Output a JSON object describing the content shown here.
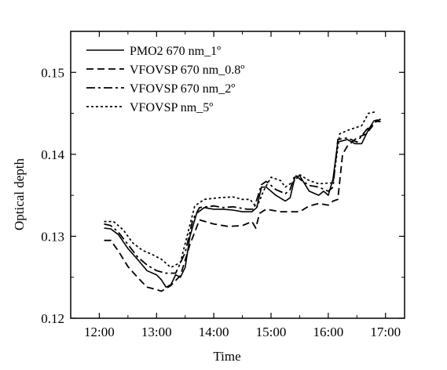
{
  "chart_data": {
    "type": "line",
    "xlabel": "Time",
    "ylabel": "Optical depth",
    "xlim": [
      "11:30",
      "17:20"
    ],
    "ylim": [
      0.12,
      0.155
    ],
    "x_ticks": [
      "12:00",
      "13:00",
      "14:00",
      "15:00",
      "16:00",
      "17:00"
    ],
    "y_ticks": [
      "0.12",
      "0.13",
      "0.14",
      "0.15"
    ],
    "grid": false,
    "legend_position": "top-left",
    "series": [
      {
        "name": "PMO2 670 nm_1º",
        "dash": "solid",
        "points": [
          [
            "12:05",
            0.131
          ],
          [
            "12:12",
            0.1309
          ],
          [
            "12:20",
            0.1302
          ],
          [
            "12:30",
            0.1285
          ],
          [
            "12:40",
            0.1272
          ],
          [
            "12:50",
            0.1258
          ],
          [
            "13:00",
            0.1253
          ],
          [
            "13:05",
            0.1247
          ],
          [
            "13:10",
            0.1238
          ],
          [
            "13:15",
            0.1241
          ],
          [
            "13:20",
            0.1253
          ],
          [
            "13:25",
            0.125
          ],
          [
            "13:30",
            0.1262
          ],
          [
            "13:35",
            0.13
          ],
          [
            "13:42",
            0.1328
          ],
          [
            "13:50",
            0.1335
          ],
          [
            "14:00",
            0.1333
          ],
          [
            "14:10",
            0.1333
          ],
          [
            "14:20",
            0.1332
          ],
          [
            "14:30",
            0.133
          ],
          [
            "14:40",
            0.133
          ],
          [
            "14:45",
            0.1335
          ],
          [
            "14:50",
            0.136
          ],
          [
            "14:55",
            0.136
          ],
          [
            "15:05",
            0.135
          ],
          [
            "15:15",
            0.1343
          ],
          [
            "15:20",
            0.1347
          ],
          [
            "15:25",
            0.1372
          ],
          [
            "15:30",
            0.1374
          ],
          [
            "15:40",
            0.1355
          ],
          [
            "15:50",
            0.135
          ],
          [
            "15:55",
            0.1355
          ],
          [
            "16:00",
            0.135
          ],
          [
            "16:05",
            0.137
          ],
          [
            "16:10",
            0.1415
          ],
          [
            "16:20",
            0.1418
          ],
          [
            "16:28",
            0.1413
          ],
          [
            "16:35",
            0.1413
          ],
          [
            "16:42",
            0.143
          ],
          [
            "16:48",
            0.1441
          ],
          [
            "16:52",
            0.1442
          ]
        ]
      },
      {
        "name": "VFOVSP 670 nm_0.8º",
        "dash": "dashed",
        "points": [
          [
            "12:05",
            0.1295
          ],
          [
            "12:12",
            0.1295
          ],
          [
            "12:20",
            0.1282
          ],
          [
            "12:30",
            0.1263
          ],
          [
            "12:40",
            0.125
          ],
          [
            "12:50",
            0.1238
          ],
          [
            "13:00",
            0.1235
          ],
          [
            "13:05",
            0.1233
          ],
          [
            "13:15",
            0.124
          ],
          [
            "13:25",
            0.1252
          ],
          [
            "13:35",
            0.129
          ],
          [
            "13:45",
            0.132
          ],
          [
            "14:00",
            0.1315
          ],
          [
            "14:15",
            0.1312
          ],
          [
            "14:30",
            0.1313
          ],
          [
            "14:40",
            0.1318
          ],
          [
            "14:44",
            0.131
          ],
          [
            "14:48",
            0.1328
          ],
          [
            "14:55",
            0.1333
          ],
          [
            "15:10",
            0.133
          ],
          [
            "15:30",
            0.133
          ],
          [
            "15:40",
            0.1337
          ],
          [
            "15:50",
            0.134
          ],
          [
            "16:00",
            0.1338
          ],
          [
            "16:05",
            0.1343
          ],
          [
            "16:10",
            0.1345
          ],
          [
            "16:15",
            0.14
          ],
          [
            "16:20",
            0.141
          ],
          [
            "16:30",
            0.142
          ],
          [
            "16:40",
            0.1425
          ],
          [
            "16:50",
            0.144
          ],
          [
            "16:55",
            0.1443
          ]
        ]
      },
      {
        "name": "VFOVSP 670 nm_2º",
        "dash": "dashdot",
        "points": [
          [
            "12:05",
            0.1315
          ],
          [
            "12:12",
            0.1313
          ],
          [
            "12:20",
            0.1305
          ],
          [
            "12:30",
            0.129
          ],
          [
            "12:40",
            0.1275
          ],
          [
            "12:50",
            0.1265
          ],
          [
            "13:00",
            0.1258
          ],
          [
            "13:10",
            0.1255
          ],
          [
            "13:20",
            0.1255
          ],
          [
            "13:30",
            0.128
          ],
          [
            "13:38",
            0.132
          ],
          [
            "13:45",
            0.1335
          ],
          [
            "14:00",
            0.1337
          ],
          [
            "14:10",
            0.1335
          ],
          [
            "14:20",
            0.1336
          ],
          [
            "14:35",
            0.1333
          ],
          [
            "14:42",
            0.1333
          ],
          [
            "14:50",
            0.1363
          ],
          [
            "14:55",
            0.1367
          ],
          [
            "15:05",
            0.1357
          ],
          [
            "15:15",
            0.1352
          ],
          [
            "15:20",
            0.1357
          ],
          [
            "15:25",
            0.1375
          ],
          [
            "15:32",
            0.1368
          ],
          [
            "15:40",
            0.1362
          ],
          [
            "15:50",
            0.136
          ],
          [
            "16:00",
            0.1355
          ],
          [
            "16:05",
            0.136
          ],
          [
            "16:10",
            0.1418
          ],
          [
            "16:20",
            0.142
          ],
          [
            "16:30",
            0.1415
          ],
          [
            "16:40",
            0.143
          ],
          [
            "16:50",
            0.144
          ],
          [
            "16:55",
            0.144
          ]
        ]
      },
      {
        "name": "VFOVSP nm_5º",
        "dash": "dotted",
        "points": [
          [
            "12:05",
            0.1318
          ],
          [
            "12:15",
            0.1318
          ],
          [
            "12:25",
            0.1308
          ],
          [
            "12:35",
            0.1292
          ],
          [
            "12:45",
            0.1283
          ],
          [
            "12:55",
            0.1278
          ],
          [
            "13:05",
            0.1272
          ],
          [
            "13:15",
            0.1262
          ],
          [
            "13:25",
            0.1268
          ],
          [
            "13:32",
            0.13
          ],
          [
            "13:40",
            0.1337
          ],
          [
            "13:50",
            0.1345
          ],
          [
            "14:05",
            0.1347
          ],
          [
            "14:20",
            0.1348
          ],
          [
            "14:30",
            0.1345
          ],
          [
            "14:38",
            0.1345
          ],
          [
            "14:45",
            0.1335
          ],
          [
            "14:52",
            0.1355
          ],
          [
            "15:00",
            0.1372
          ],
          [
            "15:10",
            0.1368
          ],
          [
            "15:15",
            0.136
          ],
          [
            "15:25",
            0.1368
          ],
          [
            "15:30",
            0.1375
          ],
          [
            "15:40",
            0.1368
          ],
          [
            "15:50",
            0.1364
          ],
          [
            "16:00",
            0.1365
          ],
          [
            "16:05",
            0.1365
          ],
          [
            "16:12",
            0.1425
          ],
          [
            "16:22",
            0.143
          ],
          [
            "16:35",
            0.1435
          ],
          [
            "16:42",
            0.145
          ],
          [
            "16:50",
            0.1452
          ]
        ]
      }
    ]
  }
}
